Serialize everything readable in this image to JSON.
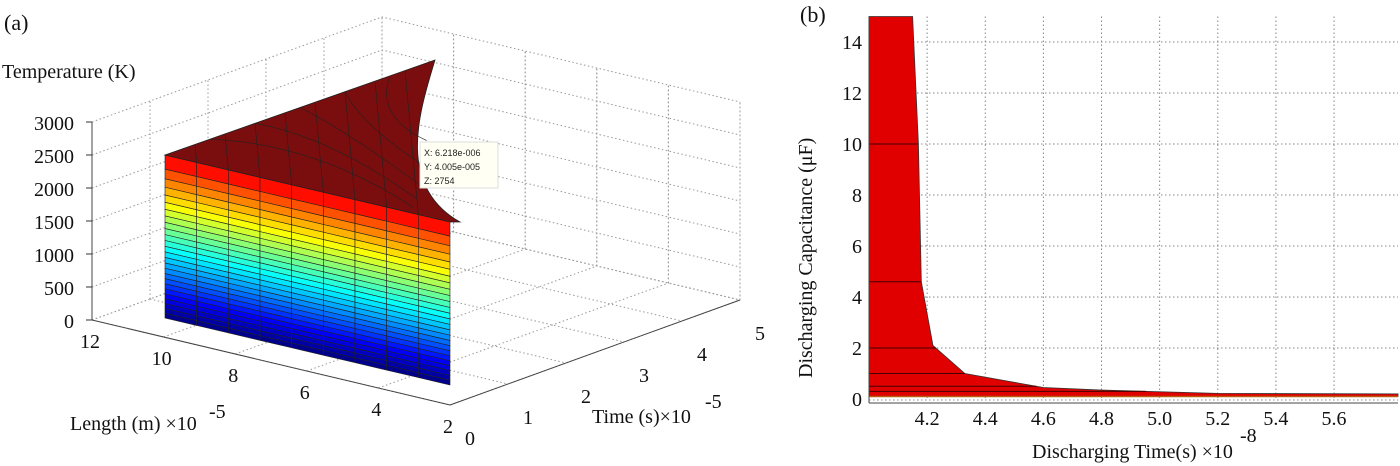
{
  "chart_data": [
    {
      "panel_label": "(a)",
      "type": "surface",
      "zlabel": "Temperature (K)",
      "xlabel": "Length (m) ×10",
      "xlabel_exponent": "-5",
      "ylabel": "Time (s)×10",
      "ylabel_exponent": "-5",
      "z_ticks": [
        "0",
        "500",
        "1000",
        "1500",
        "2000",
        "2500",
        "3000"
      ],
      "length_ticks": [
        "12",
        "10",
        "8",
        "6",
        "4",
        "2"
      ],
      "time_ticks": [
        "0",
        "1",
        "2",
        "3",
        "4",
        "5"
      ],
      "zlim": [
        0,
        3000
      ],
      "length_range": [
        2,
        12
      ],
      "time_range": [
        0,
        5
      ],
      "grid": true,
      "colormap": "jet",
      "datatip": {
        "x": "X: 6.218e-006",
        "y": "Y: 4.005e-005",
        "z": "Z: 2754"
      }
    },
    {
      "panel_label": "(b)",
      "type": "area",
      "xlabel": "Discharging Time(s) ×10",
      "xlabel_exponent": "-8",
      "ylabel": "Discharging Capacitance (μF)",
      "xlim": [
        4.0,
        5.82
      ],
      "ylim": [
        0,
        15
      ],
      "x_ticks": [
        "4.2",
        "4.4",
        "4.6",
        "4.8",
        "5.0",
        "5.2",
        "5.4",
        "5.6"
      ],
      "y_ticks": [
        "0",
        "2",
        "4",
        "6",
        "8",
        "10",
        "12",
        "14"
      ],
      "grid": true,
      "fill_color": "#e00000",
      "x": [
        4.0,
        4.15,
        4.17,
        4.18,
        4.22,
        4.33,
        4.6,
        4.8,
        5.2,
        5.82
      ],
      "y": [
        15,
        15,
        10,
        4.6,
        2.1,
        1.0,
        0.45,
        0.35,
        0.22,
        0.2
      ],
      "level_lines": [
        10,
        4.6,
        2.0,
        1.0,
        0.5,
        0.3
      ]
    }
  ]
}
